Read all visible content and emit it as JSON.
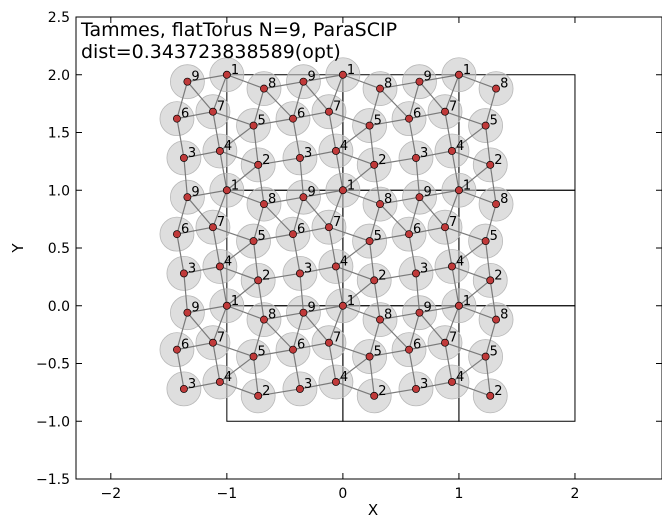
{
  "chart_data": {
    "type": "scatter",
    "title": "Tammes, flatTorus N=9, ParaSCIP",
    "subtitle": "dist=0.343723838589(opt)",
    "xlabel": "X",
    "ylabel": "Y",
    "xlim": [
      -2.3,
      2.75
    ],
    "ylim": [
      -1.5,
      2.5
    ],
    "xticks": [
      -2,
      -1,
      0,
      1,
      2
    ],
    "xtick_labels": [
      "−2",
      "−1",
      "0",
      "1",
      "2"
    ],
    "yticks": [
      -1.5,
      -1.0,
      -0.5,
      0.0,
      0.5,
      1.0,
      1.5,
      2.0,
      2.5
    ],
    "ytick_labels": [
      "−1.5",
      "−1.0",
      "−0.5",
      "0.0",
      "0.5",
      "1.0",
      "1.5",
      "2.0",
      "2.5"
    ],
    "grid": false,
    "cells": {
      "x": [
        -1,
        0,
        1
      ],
      "y": [
        -1,
        0,
        1
      ],
      "size": 1
    },
    "points": [
      {
        "label": "1",
        "x": -0.5,
        "y": 0.0
      },
      {
        "label": "2",
        "x": -0.23,
        "y": -0.78
      },
      {
        "label": "3",
        "x": -0.87,
        "y": -0.72
      },
      {
        "label": "4",
        "x": -0.56,
        "y": -0.66
      },
      {
        "label": "5",
        "x": -0.27,
        "y": -0.44
      },
      {
        "label": "6",
        "x": -0.93,
        "y": -0.38
      },
      {
        "label": "7",
        "x": -0.62,
        "y": -0.32
      },
      {
        "label": "8",
        "x": -0.18,
        "y": -0.12
      },
      {
        "label": "9",
        "x": -0.84,
        "y": -0.06
      }
    ],
    "marker_color": "#c03a3a",
    "disk_color": "#c8c8c8",
    "edge_color": "#7a7a7a"
  }
}
